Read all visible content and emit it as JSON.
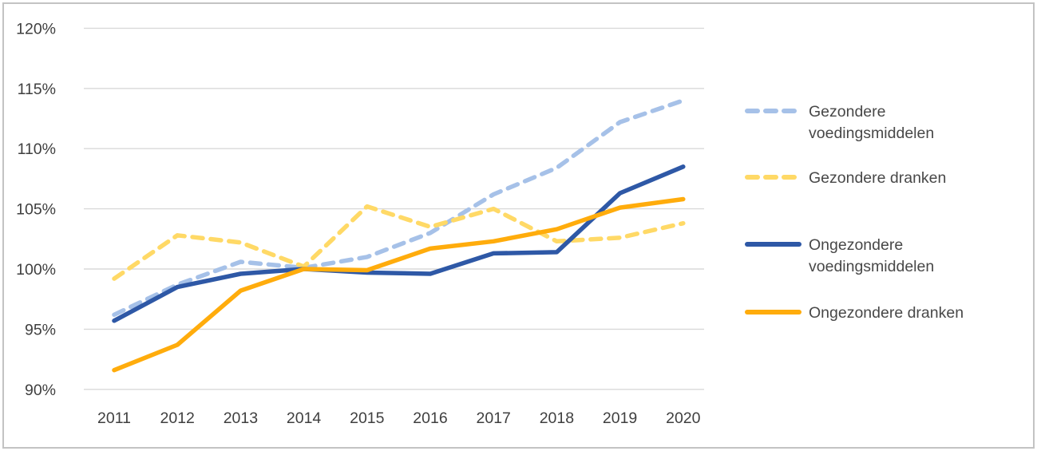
{
  "chart_data": {
    "type": "line",
    "title": "",
    "xlabel": "",
    "ylabel": "",
    "categories": [
      "2011",
      "2012",
      "2013",
      "2014",
      "2015",
      "2016",
      "2017",
      "2018",
      "2019",
      "2020"
    ],
    "y_axis": {
      "tick_labels": [
        "90%",
        "95%",
        "100%",
        "105%",
        "110%",
        "115%",
        "120%"
      ],
      "tick_values": [
        90,
        95,
        100,
        105,
        110,
        115,
        120
      ],
      "min": 90,
      "max": 120,
      "unit": "%"
    },
    "grid": "horizontal-only",
    "gridline_color": "#d9d9d9",
    "axis_text_color": "#3f3f3f",
    "legend_position": "right",
    "series": [
      {
        "name": "Gezondere voedingsmiddelen",
        "legend_lines": [
          "Gezondere",
          "voedingsmiddelen"
        ],
        "color": "#a6c1e8",
        "style": "dashed",
        "values": [
          96.2,
          98.7,
          100.6,
          100.1,
          101.0,
          103.0,
          106.2,
          108.4,
          112.2,
          114.0
        ]
      },
      {
        "name": "Gezondere dranken",
        "legend_lines": [
          "Gezondere dranken"
        ],
        "color": "#ffd966",
        "style": "dashed",
        "values": [
          99.2,
          102.8,
          102.2,
          100.2,
          105.2,
          103.5,
          105.0,
          102.3,
          102.6,
          103.8
        ]
      },
      {
        "name": "Ongezondere voedingsmiddelen",
        "legend_lines": [
          "Ongezondere",
          "voedingsmiddelen"
        ],
        "color": "#2e58a6",
        "style": "solid",
        "values": [
          95.7,
          98.5,
          99.6,
          100.0,
          99.7,
          99.6,
          101.3,
          101.4,
          106.3,
          108.5
        ]
      },
      {
        "name": "Ongezondere dranken",
        "legend_lines": [
          "Ongezondere dranken"
        ],
        "color": "#ffac0c",
        "style": "solid",
        "values": [
          91.6,
          93.7,
          98.2,
          100.0,
          99.9,
          101.7,
          102.3,
          103.3,
          105.1,
          105.8
        ]
      }
    ]
  }
}
